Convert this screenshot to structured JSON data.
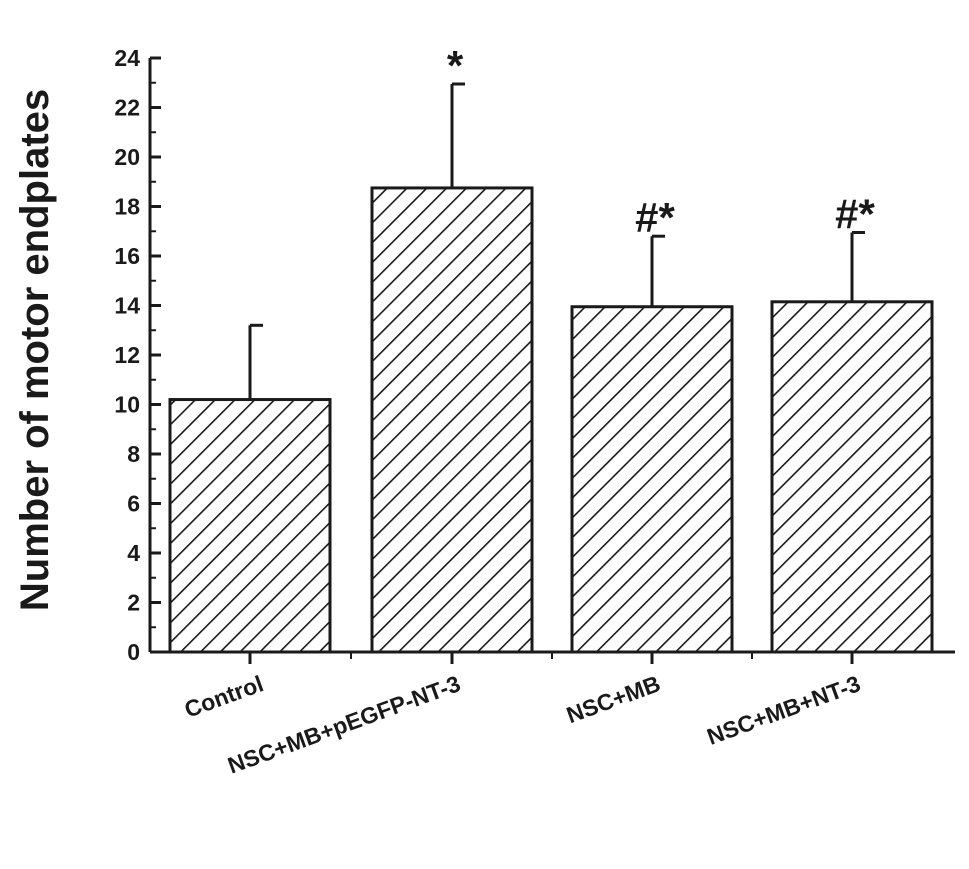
{
  "chart_data": {
    "type": "bar",
    "title": "",
    "xlabel": "",
    "ylabel": "Number of motor endplates",
    "ylim": [
      0,
      24
    ],
    "yticks": [
      0,
      2,
      4,
      6,
      8,
      10,
      12,
      14,
      16,
      18,
      20,
      22,
      24
    ],
    "grid": false,
    "categories": [
      "Control",
      "NSC+MB+pEGFP-NT-3",
      "NSC+MB",
      "NSC+MB+NT-3"
    ],
    "values": [
      10.2,
      18.75,
      13.95,
      14.15
    ],
    "error": [
      3.0,
      4.2,
      2.85,
      2.8
    ],
    "annotations": [
      "",
      "*",
      "#*",
      "#*"
    ],
    "bar_fill": "diagonal-hatch",
    "colors": {
      "ink": "#1a1a1a",
      "background": "#ffffff"
    }
  }
}
